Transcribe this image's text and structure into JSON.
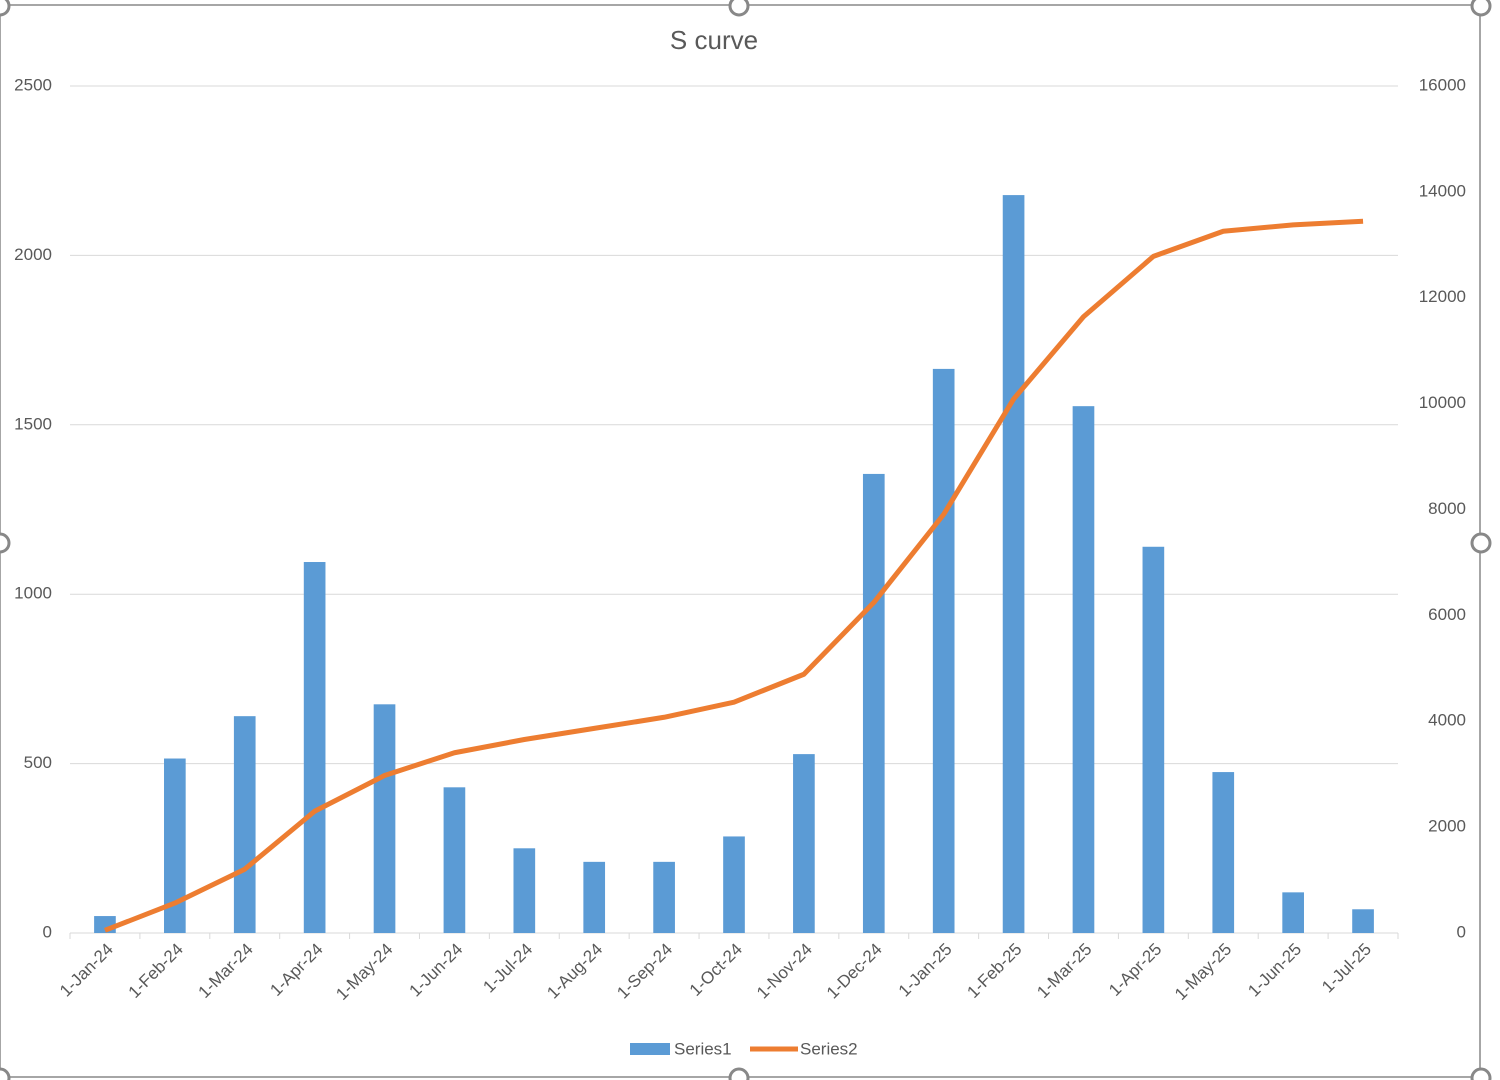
{
  "chart_data": {
    "type": "bar_line",
    "title": "S curve",
    "categories": [
      "1-Jan-24",
      "1-Feb-24",
      "1-Mar-24",
      "1-Apr-24",
      "1-May-24",
      "1-Jun-24",
      "1-Jul-24",
      "1-Aug-24",
      "1-Sep-24",
      "1-Oct-24",
      "1-Nov-24",
      "1-Dec-24",
      "1-Jan-25",
      "1-Feb-25",
      "1-Mar-25",
      "1-Apr-25",
      "1-May-25",
      "1-Jun-25",
      "1-Jul-25"
    ],
    "series": [
      {
        "name": "Series1",
        "type": "bar",
        "color": "#5b9bd5",
        "values": [
          50,
          515,
          640,
          1095,
          675,
          430,
          250,
          210,
          210,
          285,
          528,
          1355,
          1665,
          2178,
          1555,
          1140,
          475,
          120,
          70
        ]
      },
      {
        "name": "Series2",
        "type": "line",
        "axis": "y2",
        "color": "#ed7d31",
        "values": [
          50,
          565,
          1205,
          2300,
          2975,
          3405,
          3655,
          3865,
          4075,
          4360,
          4888,
          6243,
          7908,
          10086,
          11641,
          12781,
          13256,
          13376,
          13446
        ]
      }
    ],
    "ylim": [
      0,
      2500
    ],
    "yticks": [
      0,
      500,
      1000,
      1500,
      2000,
      2500
    ],
    "y2lim": [
      0,
      16000
    ],
    "y2ticks": [
      0,
      2000,
      4000,
      6000,
      8000,
      10000,
      12000,
      14000,
      16000
    ],
    "grid": true,
    "legend": "bottom"
  }
}
